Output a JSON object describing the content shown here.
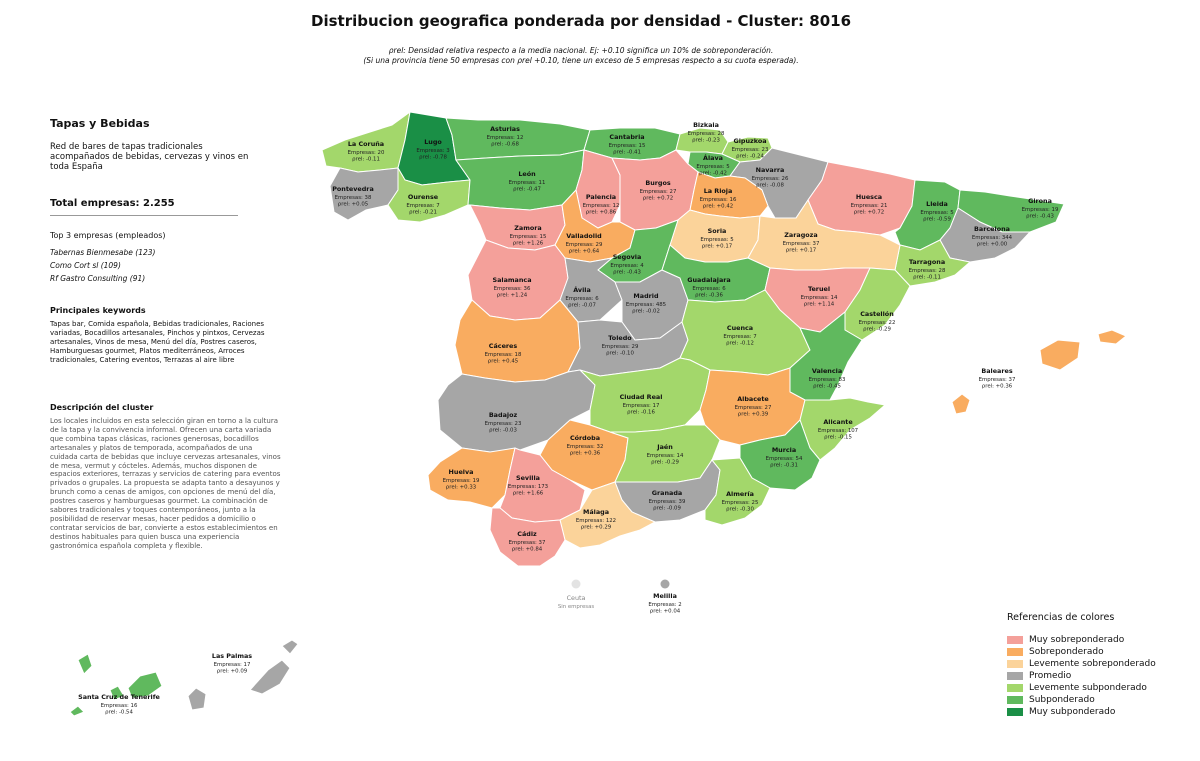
{
  "title": "Distribucion geografica ponderada por densidad - Cluster: 8016",
  "subtitle_line1": "ρrel: Densidad relativa respecto a la media nacional. Ej: +0.10 significa un 10% de sobreponderación.",
  "subtitle_line2": "(Si una provincia tiene 50 empresas con ρrel +0.10, tiene un exceso de 5 empresas respecto a su cuota esperada).",
  "cluster": {
    "name": "Tapas y Bebidas",
    "description": "Red de bares de tapas tradicionales acompañados de bebidas, cervezas y vinos en toda España",
    "total_label": "Total empresas: 2.255",
    "top3_title": "Top 3 empresas (empleados)",
    "top3": [
      "Tabernas Bienmesabe (123)",
      "Como Cort sl (109)",
      "Rf Gastro Consulting (91)"
    ],
    "keywords_title": "Principales keywords",
    "keywords": "Tapas bar, Comida española, Bebidas tradicionales, Raciones variadas, Bocadillos artesanales, Pinchos y pintxos, Cervezas artesanales, Vinos de mesa, Menú del día, Postres caseros, Hamburguesas gourmet, Platos mediterráneos, Arroces tradicionales, Catering eventos, Terrazas al aire libre",
    "description_title": "Descripción del cluster",
    "long_description": "Los locales incluidos en esta selección giran en torno a la cultura de la tapa y la convivencia informal. Ofrecen una carta variada que combina tapas clásicas, raciones generosas, bocadillos artesanales y platos de temporada, acompañados de una cuidada carta de bebidas que incluye cervezas artesanales, vinos de mesa, vermut y cócteles. Además, muchos disponen de espacios exteriores, terrazas y servicios de catering para eventos privados o grupales. La propuesta se adapta tanto a desayunos y brunch como a cenas de amigos, con opciones de menú del día, postres caseros y hamburguesas gourmet. La combinación de sabores tradicionales y toques contemporáneos, junto a la posibilidad de reservar mesas, hacer pedidos a domicilio o contratar servicios de bar, convierte a estos establecimientos en destinos habituales para quien busca una experiencia gastronómica española completa y flexible."
  },
  "legend": {
    "title": "Referencias de colores",
    "items": [
      {
        "label": "Muy sobreponderado",
        "color": "#f4a09a"
      },
      {
        "label": "Sobreponderado",
        "color": "#f9ac60"
      },
      {
        "label": "Levemente sobreponderado",
        "color": "#fbd39a"
      },
      {
        "label": "Promedio",
        "color": "#a6a6a6"
      },
      {
        "label": "Levemente subponderado",
        "color": "#a3d76b"
      },
      {
        "label": "Subponderado",
        "color": "#60b95e"
      },
      {
        "label": "Muy subponderado",
        "color": "#1a8f46"
      }
    ]
  },
  "provinces": [
    {
      "id": "la-coruna",
      "name": "La Coruña",
      "empresas": "Empresas: 20",
      "rho": "ρrel: -0.11",
      "category": 4
    },
    {
      "id": "lugo",
      "name": "Lugo",
      "empresas": "Empresas: 3",
      "rho": "ρrel: -0.78",
      "category": 6
    },
    {
      "id": "asturias",
      "name": "Asturias",
      "empresas": "Empresas: 12",
      "rho": "ρrel: -0.68",
      "category": 5
    },
    {
      "id": "cantabria",
      "name": "Cantabria",
      "empresas": "Empresas: 15",
      "rho": "ρrel: -0.41",
      "category": 5
    },
    {
      "id": "bizkaia",
      "name": "Bizkaia",
      "empresas": "Empresas: 28",
      "rho": "ρrel: -0.23",
      "category": 4
    },
    {
      "id": "gipuzkoa",
      "name": "Gipuzkoa",
      "empresas": "Empresas: 23",
      "rho": "ρrel: -0.24",
      "category": 4
    },
    {
      "id": "alava",
      "name": "Álava",
      "empresas": "Empresas: 5",
      "rho": "ρrel: -0.42",
      "category": 5
    },
    {
      "id": "navarra",
      "name": "Navarra",
      "empresas": "Empresas: 26",
      "rho": "ρrel: -0.08",
      "category": 3
    },
    {
      "id": "pontevedra",
      "name": "Pontevedra",
      "empresas": "Empresas: 38",
      "rho": "ρrel: +0.05",
      "category": 3
    },
    {
      "id": "ourense",
      "name": "Ourense",
      "empresas": "Empresas: 7",
      "rho": "ρrel: -0.21",
      "category": 4
    },
    {
      "id": "leon",
      "name": "León",
      "empresas": "Empresas: 11",
      "rho": "ρrel: -0.47",
      "category": 5
    },
    {
      "id": "palencia",
      "name": "Palencia",
      "empresas": "Empresas: 12",
      "rho": "ρrel: +0.86",
      "category": 0
    },
    {
      "id": "burgos",
      "name": "Burgos",
      "empresas": "Empresas: 27",
      "rho": "ρrel: +0.72",
      "category": 0
    },
    {
      "id": "la-rioja",
      "name": "La Rioja",
      "empresas": "Empresas: 16",
      "rho": "ρrel: +0.42",
      "category": 1
    },
    {
      "id": "huesca",
      "name": "Huesca",
      "empresas": "Empresas: 21",
      "rho": "ρrel: +0.72",
      "category": 0
    },
    {
      "id": "lleida",
      "name": "Lleida",
      "empresas": "Empresas: 5",
      "rho": "ρrel: -0.59",
      "category": 5
    },
    {
      "id": "girona",
      "name": "Girona",
      "empresas": "Empresas: 19",
      "rho": "ρrel: -0.43",
      "category": 5
    },
    {
      "id": "barcelona",
      "name": "Barcelona",
      "empresas": "Empresas: 344",
      "rho": "ρrel: +0.00",
      "category": 3
    },
    {
      "id": "tarragona",
      "name": "Tarragona",
      "empresas": "Empresas: 28",
      "rho": "ρrel: -0.11",
      "category": 4
    },
    {
      "id": "zamora",
      "name": "Zamora",
      "empresas": "Empresas: 15",
      "rho": "ρrel: +1.26",
      "category": 0
    },
    {
      "id": "valladolid",
      "name": "Valladolid",
      "empresas": "Empresas: 29",
      "rho": "ρrel: +0.64",
      "category": 1
    },
    {
      "id": "soria",
      "name": "Soria",
      "empresas": "Empresas: 5",
      "rho": "ρrel: +0.17",
      "category": 2
    },
    {
      "id": "zaragoza",
      "name": "Zaragoza",
      "empresas": "Empresas: 37",
      "rho": "ρrel: +0.17",
      "category": 2
    },
    {
      "id": "segovia",
      "name": "Segovia",
      "empresas": "Empresas: 4",
      "rho": "ρrel: -0.43",
      "category": 5
    },
    {
      "id": "salamanca",
      "name": "Salamanca",
      "empresas": "Empresas: 36",
      "rho": "ρrel: +1.24",
      "category": 0
    },
    {
      "id": "avila",
      "name": "Ávila",
      "empresas": "Empresas: 6",
      "rho": "ρrel: -0.07",
      "category": 3
    },
    {
      "id": "madrid",
      "name": "Madrid",
      "empresas": "Empresas: 485",
      "rho": "ρrel: -0.02",
      "category": 3
    },
    {
      "id": "guadalajara",
      "name": "Guadalajara",
      "empresas": "Empresas: 6",
      "rho": "ρrel: -0.36",
      "category": 5
    },
    {
      "id": "teruel",
      "name": "Teruel",
      "empresas": "Empresas: 14",
      "rho": "ρrel: +1.14",
      "category": 0
    },
    {
      "id": "castellon",
      "name": "Castellón",
      "empresas": "Empresas: 22",
      "rho": "ρrel: -0.29",
      "category": 4
    },
    {
      "id": "caceres",
      "name": "Cáceres",
      "empresas": "Empresas: 18",
      "rho": "ρrel: +0.45",
      "category": 1
    },
    {
      "id": "toledo",
      "name": "Toledo",
      "empresas": "Empresas: 29",
      "rho": "ρrel: -0.10",
      "category": 3
    },
    {
      "id": "cuenca",
      "name": "Cuenca",
      "empresas": "Empresas: 7",
      "rho": "ρrel: -0.12",
      "category": 4
    },
    {
      "id": "valencia",
      "name": "Valencia",
      "empresas": "Empresas: 83",
      "rho": "ρrel: -0.45",
      "category": 5
    },
    {
      "id": "baleares",
      "name": "Baleares",
      "empresas": "Empresas: 37",
      "rho": "ρrel: +0.36",
      "category": 1
    },
    {
      "id": "badajoz",
      "name": "Badajoz",
      "empresas": "Empresas: 23",
      "rho": "ρrel: -0.03",
      "category": 3
    },
    {
      "id": "ciudad-real",
      "name": "Ciudad Real",
      "empresas": "Empresas: 17",
      "rho": "ρrel: -0.16",
      "category": 4
    },
    {
      "id": "albacete",
      "name": "Albacete",
      "empresas": "Empresas: 27",
      "rho": "ρrel: +0.39",
      "category": 1
    },
    {
      "id": "alicante",
      "name": "Alicante",
      "empresas": "Empresas: 107",
      "rho": "ρrel: -0.15",
      "category": 4
    },
    {
      "id": "cordoba",
      "name": "Córdoba",
      "empresas": "Empresas: 32",
      "rho": "ρrel: +0.36",
      "category": 1
    },
    {
      "id": "jaen",
      "name": "Jaén",
      "empresas": "Empresas: 14",
      "rho": "ρrel: -0.29",
      "category": 4
    },
    {
      "id": "murcia",
      "name": "Murcia",
      "empresas": "Empresas: 54",
      "rho": "ρrel: -0.31",
      "category": 5
    },
    {
      "id": "huelva",
      "name": "Huelva",
      "empresas": "Empresas: 19",
      "rho": "ρrel: +0.33",
      "category": 1
    },
    {
      "id": "sevilla",
      "name": "Sevilla",
      "empresas": "Empresas: 173",
      "rho": "ρrel: +1.66",
      "category": 0
    },
    {
      "id": "granada",
      "name": "Granada",
      "empresas": "Empresas: 39",
      "rho": "ρrel: -0.09",
      "category": 3
    },
    {
      "id": "almeria",
      "name": "Almería",
      "empresas": "Empresas: 25",
      "rho": "ρrel: -0.30",
      "category": 4
    },
    {
      "id": "malaga",
      "name": "Málaga",
      "empresas": "Empresas: 122",
      "rho": "ρrel: +0.29",
      "category": 2
    },
    {
      "id": "cadiz",
      "name": "Cádiz",
      "empresas": "Empresas: 37",
      "rho": "ρrel: +0.84",
      "category": 0
    },
    {
      "id": "ceuta",
      "name": "Ceuta",
      "empresas": "Sin empresas",
      "rho": "",
      "category": -1
    },
    {
      "id": "melilla",
      "name": "Melilla",
      "empresas": "Empresas: 2",
      "rho": "ρrel: +0.04",
      "category": 3
    },
    {
      "id": "las-palmas",
      "name": "Las Palmas",
      "empresas": "Empresas: 17",
      "rho": "ρrel: +0.09",
      "category": 3
    },
    {
      "id": "santa-cruz",
      "name": "Santa Cruz de Tenerife",
      "empresas": "Empresas: 16",
      "rho": "ρrel: -0.54",
      "category": 5
    }
  ]
}
